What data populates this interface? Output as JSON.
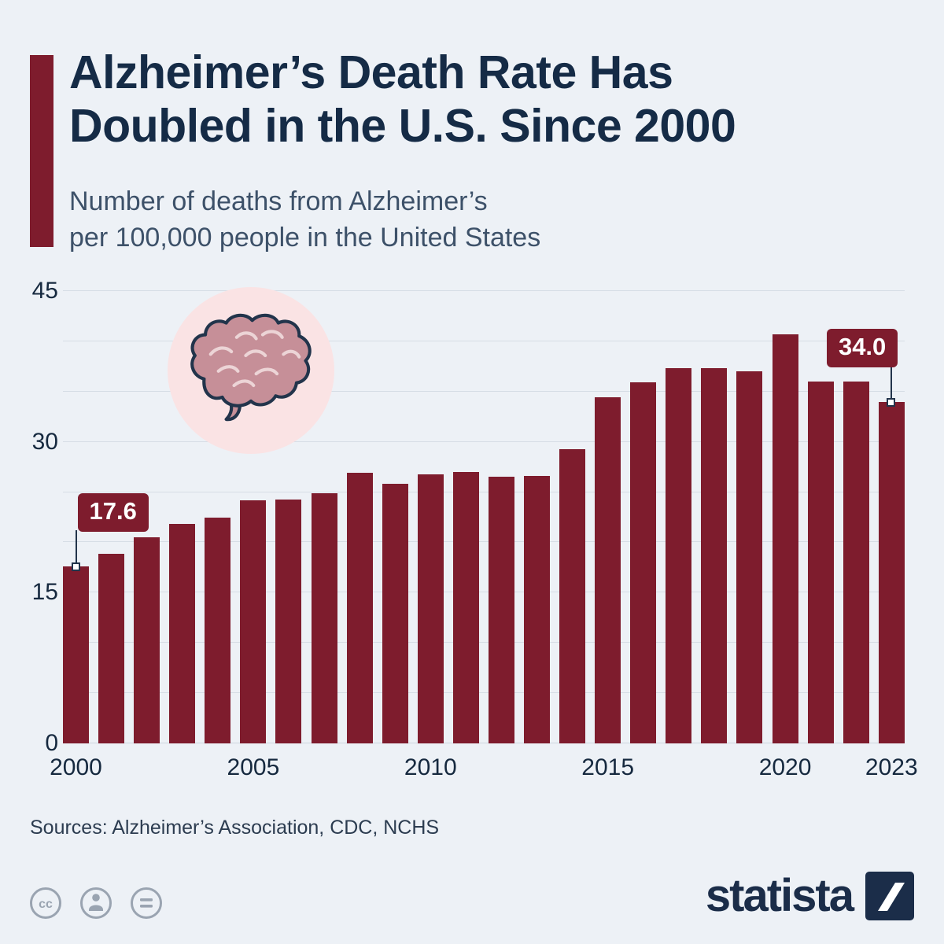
{
  "page": {
    "background": "#edf1f6"
  },
  "header": {
    "accent_color": "#7e1c2d",
    "title_line1": "Alzheimer’s Death Rate Has",
    "title_line2": "Doubled in the U.S. Since 2000",
    "subtitle_line1": "Number of deaths from Alzheimer’s",
    "subtitle_line2": "per 100,000 people in the United States"
  },
  "chart_data": {
    "type": "bar",
    "title": "Alzheimer’s Death Rate Has Doubled in the U.S. Since 2000",
    "subtitle": "Number of deaths from Alzheimer’s per 100,000 people in the United States",
    "x": [
      2000,
      2001,
      2002,
      2003,
      2004,
      2005,
      2006,
      2007,
      2008,
      2009,
      2010,
      2011,
      2012,
      2013,
      2014,
      2015,
      2016,
      2017,
      2018,
      2019,
      2020,
      2021,
      2022,
      2023
    ],
    "values": [
      17.6,
      18.9,
      20.5,
      21.8,
      22.5,
      24.2,
      24.3,
      24.9,
      26.9,
      25.8,
      26.8,
      27.0,
      26.5,
      26.6,
      29.3,
      34.4,
      35.9,
      37.3,
      37.3,
      37.0,
      40.7,
      36.0,
      36.0,
      34.0
    ],
    "ylim": [
      0,
      45
    ],
    "yticks": [
      0,
      15,
      30,
      45
    ],
    "grid_step": 5,
    "xticks": [
      2000,
      2005,
      2010,
      2015,
      2020,
      2023
    ],
    "annotations": [
      {
        "x": 2000,
        "label": "17.6"
      },
      {
        "x": 2023,
        "label": "34.0"
      }
    ],
    "bar_color": "#7e1c2d",
    "legend": "none",
    "grid": "horizontal"
  },
  "footer": {
    "sources": "Sources: Alzheimer’s Association, CDC, NCHS",
    "license_icons": [
      "cc-icon",
      "attribution-person-icon",
      "equals-icon"
    ],
    "brand": "statista"
  }
}
